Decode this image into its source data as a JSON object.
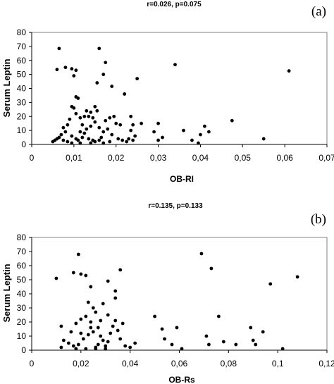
{
  "chart_data": [
    {
      "type": "scatter",
      "panel_label": "(a)",
      "title": "r=0.026, p=0.075",
      "xlabel": "OB-RI",
      "ylabel": "Serum Leptin",
      "xlim": [
        0,
        0.07
      ],
      "ylim": [
        0,
        80
      ],
      "x_ticks": [
        0,
        0.01,
        0.02,
        0.03,
        0.04,
        0.05,
        0.06,
        0.07
      ],
      "x_tick_labels": [
        "0",
        "0,01",
        "0,02",
        "0,03",
        "0,04",
        "0,05",
        "0,06",
        "0,07"
      ],
      "y_ticks": [
        0,
        10,
        20,
        30,
        40,
        50,
        60,
        70,
        80
      ],
      "y_tick_labels": [
        "0",
        "10",
        "20",
        "30",
        "40",
        "50",
        "60",
        "70",
        "80"
      ],
      "grid": false,
      "points": [
        [
          0.0065,
          68.5
        ],
        [
          0.006,
          53.5
        ],
        [
          0.008,
          55
        ],
        [
          0.0095,
          54
        ],
        [
          0.0105,
          53
        ],
        [
          0.01,
          49
        ],
        [
          0.016,
          68.5
        ],
        [
          0.0175,
          58.5
        ],
        [
          0.017,
          50
        ],
        [
          0.0155,
          44
        ],
        [
          0.019,
          41.5
        ],
        [
          0.025,
          47
        ],
        [
          0.022,
          36
        ],
        [
          0.034,
          57
        ],
        [
          0.061,
          52.5
        ],
        [
          0.0105,
          34
        ],
        [
          0.011,
          33
        ],
        [
          0.0095,
          27
        ],
        [
          0.01,
          26
        ],
        [
          0.0105,
          22
        ],
        [
          0.009,
          18
        ],
        [
          0.0085,
          14
        ],
        [
          0.008,
          9
        ],
        [
          0.0075,
          12
        ],
        [
          0.007,
          7
        ],
        [
          0.006,
          4
        ],
        [
          0.005,
          2
        ],
        [
          0.0055,
          3
        ],
        [
          0.0065,
          5
        ],
        [
          0.0075,
          3
        ],
        [
          0.0085,
          2
        ],
        [
          0.0095,
          6
        ],
        [
          0.0105,
          4
        ],
        [
          0.011,
          3
        ],
        [
          0.0115,
          9
        ],
        [
          0.012,
          14
        ],
        [
          0.0115,
          19
        ],
        [
          0.0125,
          20
        ],
        [
          0.013,
          24
        ],
        [
          0.014,
          23
        ],
        [
          0.0135,
          20
        ],
        [
          0.015,
          27
        ],
        [
          0.0145,
          19
        ],
        [
          0.0155,
          24
        ],
        [
          0.015,
          16
        ],
        [
          0.014,
          13
        ],
        [
          0.013,
          11
        ],
        [
          0.0125,
          8
        ],
        [
          0.012,
          5
        ],
        [
          0.0135,
          4
        ],
        [
          0.0145,
          3
        ],
        [
          0.015,
          2
        ],
        [
          0.016,
          3
        ],
        [
          0.0165,
          5
        ],
        [
          0.017,
          9
        ],
        [
          0.016,
          12
        ],
        [
          0.0175,
          17
        ],
        [
          0.0185,
          19
        ],
        [
          0.0195,
          20
        ],
        [
          0.02,
          15
        ],
        [
          0.021,
          14
        ],
        [
          0.018,
          11
        ],
        [
          0.019,
          7
        ],
        [
          0.0205,
          4
        ],
        [
          0.0215,
          3
        ],
        [
          0.0225,
          2
        ],
        [
          0.023,
          4
        ],
        [
          0.024,
          3
        ],
        [
          0.0245,
          6
        ],
        [
          0.0235,
          10
        ],
        [
          0.024,
          14
        ],
        [
          0.0235,
          20
        ],
        [
          0.026,
          15
        ],
        [
          0.029,
          9
        ],
        [
          0.03,
          15
        ],
        [
          0.031,
          5
        ],
        [
          0.03,
          3
        ],
        [
          0.036,
          10
        ],
        [
          0.038,
          3
        ],
        [
          0.04,
          7
        ],
        [
          0.041,
          13
        ],
        [
          0.042,
          9
        ],
        [
          0.0475,
          17
        ],
        [
          0.055,
          4
        ],
        [
          0.0395,
          1
        ],
        [
          0.0185,
          2
        ],
        [
          0.014,
          1
        ],
        [
          0.0095,
          1
        ],
        [
          0.0115,
          1
        ],
        [
          0.017,
          1
        ]
      ]
    },
    {
      "type": "scatter",
      "panel_label": "(b)",
      "title": "r=0.135, p=0.133",
      "xlabel": "OB-Rs",
      "ylabel": "Serum Leptin",
      "xlim": [
        0,
        0.12
      ],
      "ylim": [
        0,
        80
      ],
      "x_ticks": [
        0,
        0.02,
        0.04,
        0.06,
        0.08,
        0.1,
        0.12
      ],
      "x_tick_labels": [
        "0",
        "0,02",
        "0,04",
        "0,06",
        "0,08",
        "0,1",
        "0,12"
      ],
      "y_ticks": [
        0,
        10,
        20,
        30,
        40,
        50,
        60,
        70,
        80
      ],
      "y_tick_labels": [
        "0",
        "10",
        "20",
        "30",
        "40",
        "50",
        "60",
        "70",
        "80"
      ],
      "grid": false,
      "points": [
        [
          0.01,
          51
        ],
        [
          0.019,
          68
        ],
        [
          0.017,
          55
        ],
        [
          0.02,
          54
        ],
        [
          0.022,
          53
        ],
        [
          0.036,
          57
        ],
        [
          0.069,
          68.5
        ],
        [
          0.073,
          58
        ],
        [
          0.097,
          47
        ],
        [
          0.108,
          52
        ],
        [
          0.034,
          42
        ],
        [
          0.031,
          49
        ],
        [
          0.024,
          45
        ],
        [
          0.034,
          37
        ],
        [
          0.029,
          33
        ],
        [
          0.023,
          34
        ],
        [
          0.025,
          30
        ],
        [
          0.026,
          27
        ],
        [
          0.022,
          24
        ],
        [
          0.02,
          22
        ],
        [
          0.024,
          20
        ],
        [
          0.018,
          19
        ],
        [
          0.012,
          17
        ],
        [
          0.016,
          13
        ],
        [
          0.013,
          7
        ],
        [
          0.015,
          5
        ],
        [
          0.012,
          2
        ],
        [
          0.017,
          3
        ],
        [
          0.019,
          4
        ],
        [
          0.021,
          8
        ],
        [
          0.023,
          11
        ],
        [
          0.025,
          13
        ],
        [
          0.027,
          16
        ],
        [
          0.028,
          10
        ],
        [
          0.029,
          7
        ],
        [
          0.027,
          4
        ],
        [
          0.026,
          2
        ],
        [
          0.03,
          3
        ],
        [
          0.031,
          6
        ],
        [
          0.032,
          12
        ],
        [
          0.033,
          17
        ],
        [
          0.034,
          21
        ],
        [
          0.035,
          14
        ],
        [
          0.036,
          8
        ],
        [
          0.037,
          19
        ],
        [
          0.038,
          3
        ],
        [
          0.04,
          2
        ],
        [
          0.042,
          5
        ],
        [
          0.03,
          1
        ],
        [
          0.022,
          1
        ],
        [
          0.018,
          1
        ],
        [
          0.05,
          24
        ],
        [
          0.053,
          15
        ],
        [
          0.054,
          8
        ],
        [
          0.057,
          4
        ],
        [
          0.059,
          16
        ],
        [
          0.061,
          1
        ],
        [
          0.071,
          10
        ],
        [
          0.072,
          4
        ],
        [
          0.076,
          24
        ],
        [
          0.078,
          6
        ],
        [
          0.083,
          4
        ],
        [
          0.089,
          16
        ],
        [
          0.091,
          4
        ],
        [
          0.094,
          13
        ],
        [
          0.102,
          1
        ],
        [
          0.09,
          7
        ],
        [
          0.028,
          21
        ],
        [
          0.024,
          16
        ],
        [
          0.02,
          12
        ],
        [
          0.031,
          25
        ],
        [
          0.026,
          1
        ]
      ]
    }
  ]
}
